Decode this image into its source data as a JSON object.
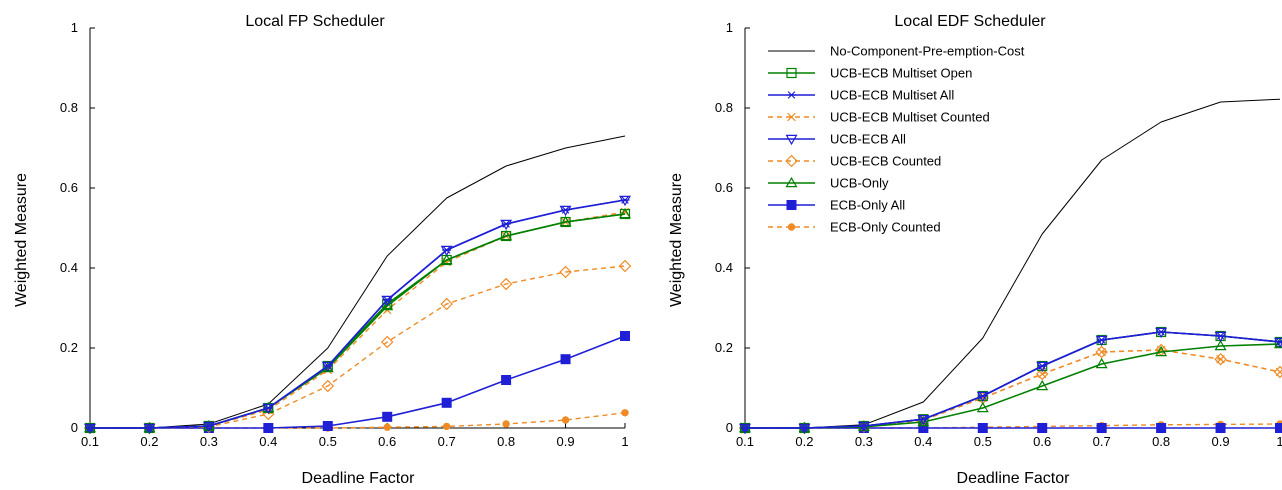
{
  "colors": {
    "no_cost": "#000000",
    "green": "#008000",
    "blue": "#1f1fd6",
    "orange": "#f08a24",
    "axis": "#000000"
  },
  "chart_data": [
    {
      "type": "line",
      "title": "Local FP Scheduler",
      "xlabel": "Deadline Factor",
      "ylabel": "Weighted Measure",
      "xlim": [
        0.1,
        1.0
      ],
      "ylim": [
        0,
        1
      ],
      "grid": false,
      "x": [
        0.1,
        0.2,
        0.3,
        0.4,
        0.5,
        0.6,
        0.7,
        0.8,
        0.9,
        1.0
      ],
      "x_tick_labels": [
        "0.1",
        "0.2",
        "0.3",
        "0.4",
        "0.5",
        "0.6",
        "0.7",
        "0.8",
        "0.9",
        "1"
      ],
      "y_ticks": [
        0,
        0.2,
        0.4,
        0.6,
        0.8,
        1
      ],
      "y_tick_labels": [
        "0",
        "0.2",
        "0.4",
        "0.6",
        "0.8",
        "1"
      ],
      "series": [
        {
          "key": "s1",
          "values": [
            0,
            0,
            0.01,
            0.06,
            0.2,
            0.43,
            0.575,
            0.655,
            0.7,
            0.73
          ]
        },
        {
          "key": "s2",
          "values": [
            0,
            0,
            0.005,
            0.05,
            0.155,
            0.31,
            0.42,
            0.48,
            0.515,
            0.535
          ]
        },
        {
          "key": "s3",
          "values": [
            0,
            0,
            0.005,
            0.05,
            0.155,
            0.32,
            0.445,
            0.51,
            0.545,
            0.57
          ]
        },
        {
          "key": "s4",
          "values": [
            0,
            0,
            0.005,
            0.045,
            0.145,
            0.295,
            0.415,
            0.48,
            0.515,
            0.54
          ]
        },
        {
          "key": "s5",
          "values": [
            0,
            0,
            0.005,
            0.05,
            0.155,
            0.32,
            0.445,
            0.51,
            0.545,
            0.57
          ]
        },
        {
          "key": "s6",
          "values": [
            0,
            0,
            0.003,
            0.035,
            0.105,
            0.215,
            0.31,
            0.36,
            0.39,
            0.405
          ]
        },
        {
          "key": "s7",
          "values": [
            0,
            0,
            0.005,
            0.05,
            0.15,
            0.305,
            0.42,
            0.48,
            0.515,
            0.535
          ]
        },
        {
          "key": "s8",
          "values": [
            0,
            0,
            0,
            0,
            0.005,
            0.028,
            0.063,
            0.12,
            0.172,
            0.23
          ]
        },
        {
          "key": "s9",
          "values": [
            0,
            0,
            0,
            0,
            0,
            0.002,
            0.004,
            0.01,
            0.02,
            0.038
          ]
        }
      ]
    },
    {
      "type": "line",
      "title": "Local EDF Scheduler",
      "xlabel": "Deadline Factor",
      "ylabel": "Weighted Measure",
      "xlim": [
        0.1,
        1.0
      ],
      "ylim": [
        0,
        1
      ],
      "grid": false,
      "legend_position": "top-left",
      "x": [
        0.1,
        0.2,
        0.3,
        0.4,
        0.5,
        0.6,
        0.7,
        0.8,
        0.9,
        1.0
      ],
      "x_tick_labels": [
        "0.1",
        "0.2",
        "0.3",
        "0.4",
        "0.5",
        "0.6",
        "0.7",
        "0.8",
        "0.9",
        "1"
      ],
      "y_ticks": [
        0,
        0.2,
        0.4,
        0.6,
        0.8,
        1
      ],
      "y_tick_labels": [
        "0",
        "0.2",
        "0.4",
        "0.6",
        "0.8",
        "1"
      ],
      "series": [
        {
          "key": "s1",
          "name": "No-Component-Pre-emption-Cost",
          "values": [
            0,
            0,
            0.008,
            0.065,
            0.225,
            0.485,
            0.67,
            0.765,
            0.815,
            0.822
          ]
        },
        {
          "key": "s2",
          "name": "UCB-ECB Multiset Open",
          "values": [
            0,
            0,
            0.005,
            0.022,
            0.08,
            0.155,
            0.22,
            0.24,
            0.23,
            0.215
          ]
        },
        {
          "key": "s3",
          "name": "UCB-ECB Multiset All",
          "values": [
            0,
            0,
            0.005,
            0.022,
            0.08,
            0.155,
            0.22,
            0.24,
            0.23,
            0.215
          ]
        },
        {
          "key": "s4",
          "name": "UCB-ECB Multiset Counted",
          "values": [
            0,
            0,
            0.004,
            0.02,
            0.075,
            0.135,
            0.19,
            0.195,
            0.172,
            0.14
          ]
        },
        {
          "key": "s5",
          "name": "UCB-ECB All",
          "values": [
            0,
            0,
            0.005,
            0.022,
            0.08,
            0.155,
            0.22,
            0.24,
            0.23,
            0.215
          ]
        },
        {
          "key": "s6",
          "name": "UCB-ECB Counted",
          "values": [
            0,
            0,
            0.004,
            0.02,
            0.075,
            0.135,
            0.19,
            0.195,
            0.172,
            0.14
          ]
        },
        {
          "key": "s7",
          "name": "UCB-Only",
          "values": [
            0,
            0,
            0.003,
            0.015,
            0.05,
            0.105,
            0.16,
            0.19,
            0.205,
            0.21
          ]
        },
        {
          "key": "s8",
          "name": "ECB-Only All",
          "values": [
            0,
            0,
            0,
            0,
            0,
            0,
            0,
            0,
            0,
            0
          ]
        },
        {
          "key": "s9",
          "name": "ECB-Only Counted",
          "values": [
            0,
            0,
            0,
            0,
            0.002,
            0.004,
            0.006,
            0.008,
            0.009,
            0.01
          ]
        }
      ]
    }
  ]
}
